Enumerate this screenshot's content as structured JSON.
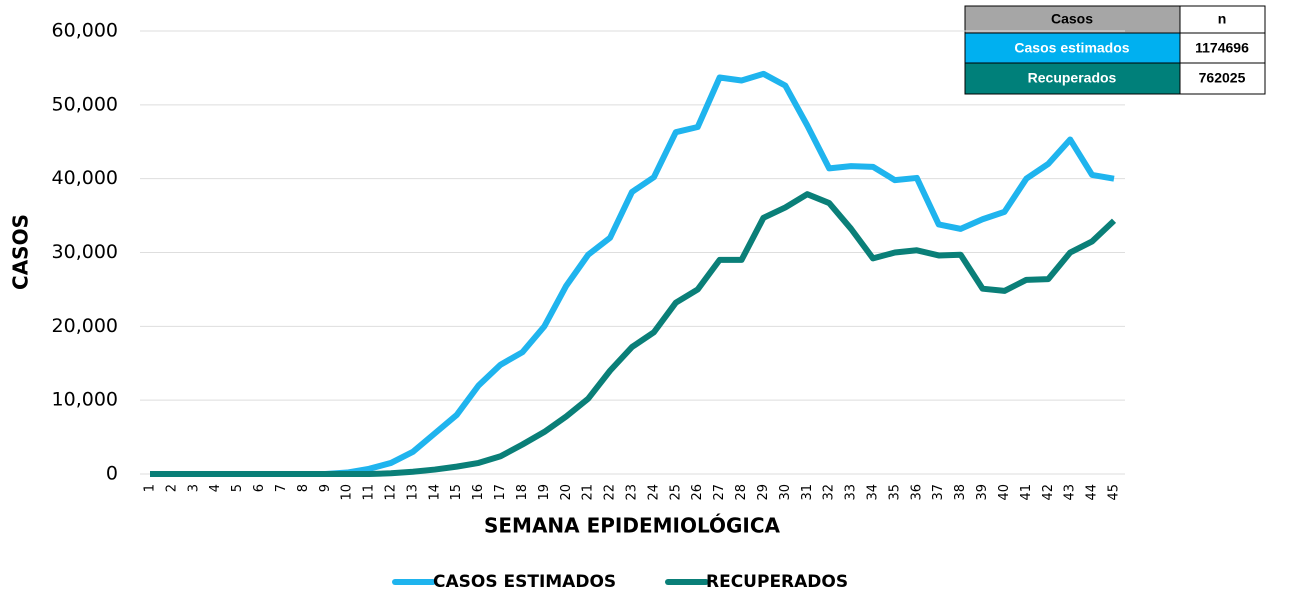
{
  "chart_data": {
    "type": "line",
    "x_label": "SEMANA EPIDEMIOLÓGICA",
    "y_label": "CASOS",
    "categories": [
      "1",
      "2",
      "3",
      "4",
      "5",
      "6",
      "7",
      "8",
      "9",
      "10",
      "11",
      "12",
      "13",
      "14",
      "15",
      "16",
      "17",
      "18",
      "19",
      "20",
      "21",
      "22",
      "23",
      "24",
      "25",
      "26",
      "27",
      "28",
      "29",
      "30",
      "31",
      "32",
      "33",
      "34",
      "35",
      "36",
      "37",
      "38",
      "39",
      "40",
      "41",
      "42",
      "43",
      "44",
      "45"
    ],
    "series": [
      {
        "name": "CASOS ESTIMADOS",
        "color": "#1fb4ee",
        "values": [
          0,
          0,
          0,
          0,
          0,
          0,
          0,
          0,
          0,
          200,
          700,
          1500,
          3000,
          5500,
          8000,
          12000,
          14800,
          16500,
          20000,
          25500,
          29700,
          32000,
          38200,
          40200,
          46300,
          47000,
          53700,
          53300,
          54200,
          52600,
          47200,
          41400,
          41700,
          41600,
          39800,
          40100,
          33800,
          33200,
          34500,
          35500,
          40000,
          42000,
          45300,
          40500,
          40000
        ]
      },
      {
        "name": "RECUPERADOS",
        "color": "#0a7f78",
        "values": [
          0,
          0,
          0,
          0,
          0,
          0,
          0,
          0,
          0,
          0,
          0,
          100,
          300,
          600,
          1000,
          1500,
          2400,
          4000,
          5700,
          7800,
          10200,
          14000,
          17200,
          19200,
          23200,
          25000,
          29000,
          29000,
          34700,
          36100,
          37900,
          36700,
          33200,
          29200,
          30000,
          30300,
          29600,
          29700,
          25100,
          24800,
          26300,
          26400,
          30000,
          31500,
          34300
        ]
      }
    ],
    "ylim": [
      0,
      60000
    ],
    "yticks": [
      0,
      {
        "value": 10000,
        "label": "10,000"
      },
      {
        "value": 20000,
        "label": "20,000"
      },
      {
        "value": 30000,
        "label": "30,000"
      },
      {
        "value": 40000,
        "label": "40,000"
      },
      {
        "value": 50000,
        "label": "50,000"
      },
      {
        "value": 60000,
        "label": "60,000"
      }
    ],
    "grid": true,
    "legend": "bottom",
    "table": {
      "header": [
        "Casos",
        "n"
      ],
      "rows": [
        [
          "Casos estimados",
          1174696
        ],
        [
          "Recuperados",
          762025
        ]
      ]
    }
  }
}
